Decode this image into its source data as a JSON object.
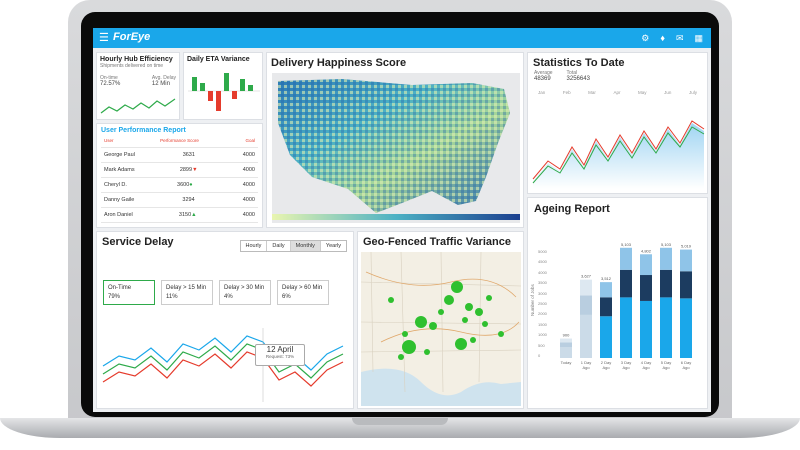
{
  "app": {
    "logo": "ForEye"
  },
  "hub": {
    "title": "Hourly Hub Efficiency",
    "subtitle": "Shipments delivered on time",
    "ontime_label": "On-time",
    "ontime_value": "72.57%",
    "avg_label": "Avg. Delay",
    "avg_value": "12 Min"
  },
  "eta": {
    "title": "Daily ETA Variance"
  },
  "upr": {
    "title": "User Performance Report",
    "headers": [
      "User",
      "Performance Score",
      "Goal"
    ],
    "rows": [
      {
        "user": "George Paul",
        "score": "3631",
        "goal": "4000"
      },
      {
        "user": "Mark Adams",
        "score": "2899",
        "goal": "4000"
      },
      {
        "user": "Cheryl D.",
        "score": "3600",
        "goal": "4000"
      },
      {
        "user": "Danny Gaile",
        "score": "3294",
        "goal": "4000"
      },
      {
        "user": "Aron Daniel",
        "score": "3150",
        "goal": "4000"
      }
    ]
  },
  "happiness": {
    "title": "Delivery Happiness Score"
  },
  "stats": {
    "title": "Statistics To Date",
    "avg_label": "Average",
    "avg_value": "48369",
    "total_label": "Total",
    "total_value": "3256643",
    "months": [
      "Jan",
      "Feb",
      "Mar",
      "Apr",
      "May",
      "Jun",
      "July"
    ]
  },
  "ageing": {
    "title": "Ageing Report",
    "ylabel": "Number of Jobs",
    "yticks": [
      "5000",
      "4500",
      "4000",
      "3500",
      "3000",
      "2500",
      "2000",
      "1500",
      "1000",
      "500",
      "0"
    ],
    "bars": [
      {
        "label": "Today",
        "value_label": "900"
      },
      {
        "label": "1 Day Ago",
        "value_label": "3,627"
      },
      {
        "label": "2 Day Ago",
        "value_label": "3,512"
      },
      {
        "label": "3 Day Ago",
        "value_label": "5,103"
      },
      {
        "label": "4 Day Ago",
        "value_label": "4,802"
      },
      {
        "label": "5 Day Ago",
        "value_label": "5,103"
      },
      {
        "label": "6 Day Ago",
        "value_label": "5,019"
      }
    ]
  },
  "service": {
    "title": "Service Delay",
    "tabs": [
      "Hourly",
      "Daily",
      "Monthly",
      "Yearly"
    ],
    "cards": [
      {
        "label": "On-Time",
        "value": "79%"
      },
      {
        "label": "Delay > 15 Min",
        "value": "11%"
      },
      {
        "label": "Delay > 30 Min",
        "value": "4%"
      },
      {
        "label": "Delay > 60 Min",
        "value": "6%"
      }
    ],
    "tooltip_date": "12 April",
    "tooltip_text": "Request: 73%"
  },
  "geo": {
    "title": "Geo-Fenced Traffic Variance"
  },
  "colors": {
    "brand": "#1aa7ea",
    "green": "#2eaa4a",
    "red": "#e53b2c",
    "blue": "#1aa7ea"
  }
}
